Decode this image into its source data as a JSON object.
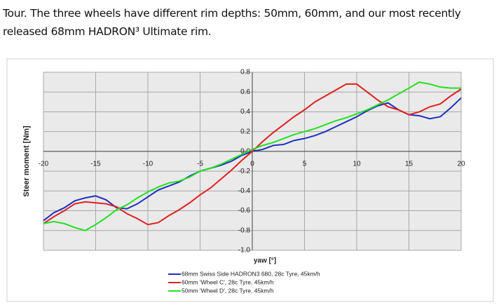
{
  "paragraph": "Tour. The three wheels have different rim depths: 50mm, 60mm, and our most recently released 68mm HADRON³ Ultimate rim.",
  "chart_data": {
    "type": "line",
    "xlabel": "yaw [°]",
    "ylabel": "Steer moment [Nm]",
    "x": [
      -20,
      -19,
      -18,
      -17,
      -16,
      -15,
      -14,
      -13,
      -12,
      -11,
      -10,
      -9,
      -8,
      -7,
      -6,
      -5,
      -4,
      -3,
      -2,
      -1,
      0,
      1,
      2,
      3,
      4,
      5,
      6,
      7,
      8,
      9,
      10,
      11,
      12,
      13,
      14,
      15,
      16,
      17,
      18,
      19,
      20
    ],
    "xlim": [
      -20,
      20
    ],
    "xticks": [
      -20,
      -15,
      -10,
      -5,
      0,
      5,
      10,
      15,
      20
    ],
    "ylim": [
      -1.0,
      0.8
    ],
    "yticks": [
      0.8,
      0.6,
      0.4,
      0.2,
      {
        "value": 0,
        "label": "0.0"
      },
      -0.2,
      -0.4,
      -0.6,
      -0.8,
      {
        "value": -1.0,
        "label": "-1.0"
      }
    ],
    "grid": true,
    "series": [
      {
        "name": "68mm Swiss Side HADRON3  680, 28c Tyre, 45km/h",
        "color": "#1f2fbf",
        "values": [
          -0.7,
          -0.62,
          -0.57,
          -0.5,
          -0.47,
          -0.45,
          -0.49,
          -0.57,
          -0.58,
          -0.53,
          -0.46,
          -0.39,
          -0.35,
          -0.31,
          -0.25,
          -0.2,
          -0.17,
          -0.14,
          -0.1,
          -0.04,
          0,
          0.02,
          0.06,
          0.07,
          0.11,
          0.13,
          0.16,
          0.2,
          0.25,
          0.3,
          0.35,
          0.41,
          0.46,
          0.49,
          0.42,
          0.37,
          0.36,
          0.33,
          0.35,
          0.44,
          0.54
        ]
      },
      {
        "name": "60mm 'Wheel C', 28c Tyre, 45km/h",
        "color": "#e02020",
        "values": [
          -0.73,
          -0.66,
          -0.6,
          -0.53,
          -0.51,
          -0.52,
          -0.53,
          -0.56,
          -0.63,
          -0.68,
          -0.74,
          -0.72,
          -0.65,
          -0.59,
          -0.52,
          -0.44,
          -0.37,
          -0.28,
          -0.19,
          -0.09,
          0,
          0.1,
          0.19,
          0.27,
          0.35,
          0.42,
          0.5,
          0.56,
          0.62,
          0.68,
          0.68,
          0.6,
          0.52,
          0.45,
          0.42,
          0.37,
          0.4,
          0.45,
          0.48,
          0.56,
          0.63
        ]
      },
      {
        "name": "50mm 'Wheel D', 28c Tyre, 45km/h",
        "color": "#22e022",
        "values": [
          -0.73,
          -0.71,
          -0.73,
          -0.77,
          -0.8,
          -0.74,
          -0.67,
          -0.59,
          -0.54,
          -0.47,
          -0.41,
          -0.36,
          -0.32,
          -0.3,
          -0.26,
          -0.2,
          -0.17,
          -0.13,
          -0.08,
          -0.03,
          0.02,
          0.06,
          0.09,
          0.13,
          0.17,
          0.2,
          0.23,
          0.27,
          0.31,
          0.34,
          0.38,
          0.42,
          0.47,
          0.52,
          0.58,
          0.64,
          0.7,
          0.68,
          0.65,
          0.64,
          0.64
        ]
      }
    ]
  }
}
